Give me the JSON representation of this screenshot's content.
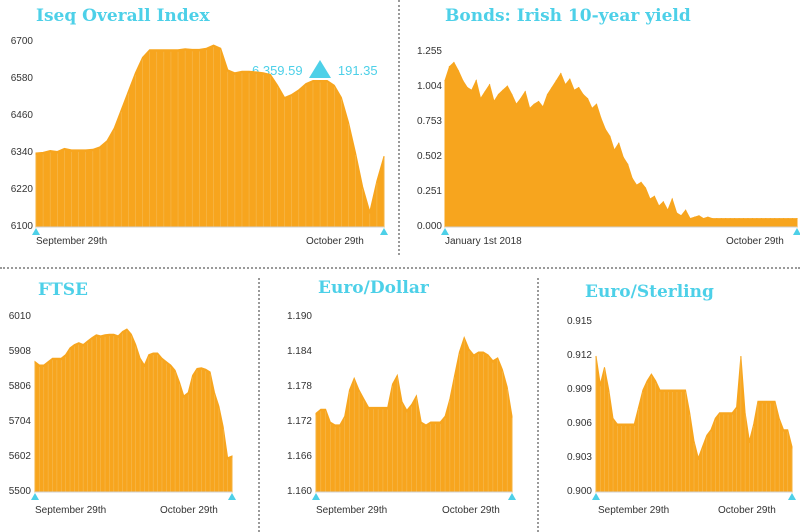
{
  "colors": {
    "area": "#f7a51e",
    "title": "#4dd0e8",
    "grid": "#f5c46b",
    "marker": "#4dd0e8"
  },
  "chart_data": [
    {
      "id": "iseq",
      "type": "area",
      "title": "Iseq Overall Index",
      "ylim": [
        6100,
        6700
      ],
      "yticks": [
        "6700",
        "6580",
        "6460",
        "6340",
        "6220",
        "6100"
      ],
      "xlabels": [
        "September 29th",
        "October 29th"
      ],
      "annotation": {
        "value": "6,359.59",
        "change": "191.35"
      },
      "values": [
        6340,
        6342,
        6348,
        6345,
        6355,
        6350,
        6350,
        6350,
        6352,
        6360,
        6380,
        6420,
        6480,
        6540,
        6600,
        6650,
        6675,
        6675,
        6675,
        6675,
        6675,
        6678,
        6676,
        6676,
        6680,
        6690,
        6680,
        6610,
        6600,
        6605,
        6605,
        6603,
        6600,
        6595,
        6560,
        6520,
        6530,
        6545,
        6565,
        6575,
        6575,
        6575,
        6560,
        6520,
        6440,
        6340,
        6230,
        6150,
        6250,
        6330
      ]
    },
    {
      "id": "bonds",
      "type": "area",
      "title": "Bonds: Irish 10-year yield",
      "ylim": [
        0,
        1.255
      ],
      "yticks": [
        "1.255",
        "1.004",
        "0.753",
        "0.502",
        "0.251",
        "0.000"
      ],
      "xlabels": [
        "January 1st 2018",
        "October 29th"
      ],
      "values": [
        1.05,
        1.15,
        1.18,
        1.12,
        1.05,
        1.0,
        0.98,
        1.05,
        0.92,
        0.97,
        1.02,
        0.9,
        0.95,
        0.98,
        1.01,
        0.95,
        0.88,
        0.92,
        0.97,
        0.85,
        0.88,
        0.9,
        0.86,
        0.95,
        1.0,
        1.05,
        1.1,
        1.02,
        1.06,
        0.98,
        1.0,
        0.95,
        0.92,
        0.85,
        0.88,
        0.78,
        0.7,
        0.65,
        0.55,
        0.6,
        0.5,
        0.45,
        0.35,
        0.3,
        0.32,
        0.28,
        0.2,
        0.22,
        0.15,
        0.18,
        0.12,
        0.2,
        0.1,
        0.08,
        0.12,
        0.06,
        0.07,
        0.08,
        0.06,
        0.07,
        0.06,
        0.06,
        0.06,
        0.06,
        0.06,
        0.06,
        0.06,
        0.06,
        0.06,
        0.06,
        0.06,
        0.06,
        0.06,
        0.06,
        0.06,
        0.06,
        0.06,
        0.06,
        0.06,
        0.06
      ]
    },
    {
      "id": "ftse",
      "type": "area",
      "title": "FTSE",
      "ylim": [
        5500,
        6010
      ],
      "yticks": [
        "6010",
        "5908",
        "5806",
        "5704",
        "5602",
        "5500"
      ],
      "xlabels": [
        "September 29th",
        "October 29th"
      ],
      "values": [
        5880,
        5870,
        5870,
        5880,
        5890,
        5890,
        5890,
        5900,
        5920,
        5930,
        5935,
        5930,
        5940,
        5950,
        5958,
        5955,
        5958,
        5960,
        5960,
        5955,
        5968,
        5975,
        5960,
        5930,
        5890,
        5870,
        5900,
        5905,
        5905,
        5890,
        5880,
        5870,
        5855,
        5820,
        5780,
        5790,
        5840,
        5860,
        5862,
        5858,
        5850,
        5790,
        5750,
        5690,
        5600,
        5605
      ]
    },
    {
      "id": "eurusd",
      "type": "area",
      "title": "Euro/Dollar",
      "ylim": [
        1.16,
        1.19
      ],
      "yticks": [
        "1.190",
        "1.184",
        "1.178",
        "1.172",
        "1.166",
        "1.160"
      ],
      "xlabels": [
        "September 29th",
        "October 29th"
      ],
      "values": [
        1.1735,
        1.1742,
        1.1742,
        1.172,
        1.1715,
        1.1715,
        1.173,
        1.1775,
        1.1795,
        1.1775,
        1.176,
        1.1745,
        1.1745,
        1.1745,
        1.1745,
        1.1745,
        1.1785,
        1.18,
        1.1755,
        1.174,
        1.175,
        1.1765,
        1.172,
        1.1715,
        1.172,
        1.172,
        1.172,
        1.173,
        1.176,
        1.18,
        1.184,
        1.1865,
        1.1845,
        1.1835,
        1.184,
        1.184,
        1.1835,
        1.1825,
        1.183,
        1.181,
        1.178,
        1.173
      ]
    },
    {
      "id": "eurgbp",
      "type": "area",
      "title": "Euro/Sterling",
      "ylim": [
        0.9,
        0.915
      ],
      "yticks": [
        "0.915",
        "0.912",
        "0.909",
        "0.906",
        "0.903",
        "0.900"
      ],
      "xlabels": [
        "September 29th",
        "October 29th"
      ],
      "values": [
        0.912,
        0.9095,
        0.911,
        0.909,
        0.9065,
        0.906,
        0.906,
        0.906,
        0.906,
        0.906,
        0.9075,
        0.909,
        0.9098,
        0.9104,
        0.9098,
        0.909,
        0.909,
        0.909,
        0.909,
        0.909,
        0.909,
        0.909,
        0.907,
        0.9045,
        0.903,
        0.904,
        0.905,
        0.9055,
        0.9065,
        0.907,
        0.907,
        0.907,
        0.907,
        0.9075,
        0.912,
        0.907,
        0.9045,
        0.906,
        0.908,
        0.908,
        0.908,
        0.908,
        0.908,
        0.9065,
        0.9055,
        0.9055,
        0.904
      ]
    }
  ]
}
